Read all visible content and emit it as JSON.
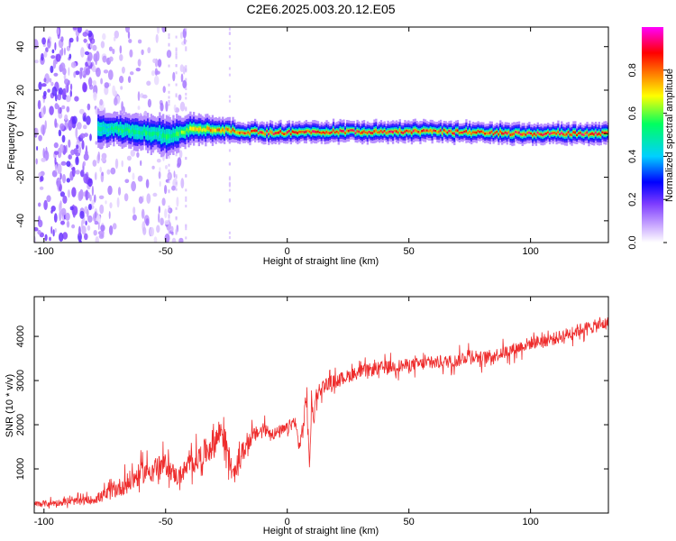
{
  "title": "C2E6.2025.003.20.12.E05",
  "chart_data": [
    {
      "type": "heatmap",
      "xlabel": "Height of straight line (km)",
      "ylabel": "Frequency (Hz)",
      "xlim": [
        -104,
        132
      ],
      "ylim": [
        -50,
        49
      ],
      "xticks": [
        -100,
        -50,
        0,
        50,
        100
      ],
      "yticks": [
        -40,
        -20,
        0,
        20,
        40
      ],
      "colorbar": {
        "label": "Normalized spectral amplitude",
        "range": [
          0,
          1
        ],
        "ticks": [
          0.0,
          0.2,
          0.4,
          0.6,
          0.8
        ],
        "colors": [
          "#ffffff",
          "#c9a7ff",
          "#7d3cff",
          "#0000ff",
          "#00d0ff",
          "#00ff60",
          "#ffff00",
          "#ff8000",
          "#ff0000",
          "#ff00ff"
        ]
      },
      "band": {
        "x": [
          -78,
          -70,
          -60,
          -50,
          -45,
          -40,
          -30,
          -20,
          -10,
          0,
          20,
          40,
          60,
          80,
          100,
          120,
          132
        ],
        "center_hz": [
          2,
          2,
          1,
          -1,
          0,
          2,
          2,
          1,
          0.5,
          0.5,
          1,
          1,
          1,
          0.5,
          0,
          0,
          0
        ],
        "half_width_hz": [
          5,
          4.5,
          5,
          5.5,
          5,
          4.5,
          4,
          3,
          3,
          3,
          3,
          3,
          3,
          3,
          3,
          3,
          3
        ],
        "peak_amplitude": [
          0.5,
          0.55,
          0.55,
          0.55,
          0.6,
          0.7,
          0.8,
          0.85,
          0.9,
          0.9,
          0.9,
          0.9,
          0.88,
          0.9,
          0.92,
          0.92,
          0.9
        ]
      },
      "noise_region_x": [
        -104,
        -72
      ]
    },
    {
      "type": "line",
      "xlabel": "Height of straight line (km)",
      "ylabel": "SNR (10 * v/v)",
      "xlim": [
        -104,
        132
      ],
      "ylim": [
        0,
        4900
      ],
      "xticks": [
        -100,
        -50,
        0,
        50,
        100
      ],
      "yticks": [
        1000,
        2000,
        3000,
        4000
      ],
      "color": "#ee2c2c",
      "x": [
        -104,
        -90,
        -80,
        -75,
        -70,
        -65,
        -60,
        -55,
        -50,
        -45,
        -40,
        -35,
        -30,
        -27,
        -25,
        -22,
        -20,
        -15,
        -10,
        -5,
        0,
        3,
        5,
        7,
        8,
        9,
        10,
        11,
        12,
        15,
        20,
        25,
        30,
        35,
        40,
        50,
        60,
        70,
        75,
        80,
        90,
        100,
        110,
        120,
        132
      ],
      "y": [
        200,
        250,
        300,
        400,
        550,
        700,
        900,
        1000,
        1100,
        800,
        1100,
        1300,
        1600,
        1900,
        1500,
        800,
        1200,
        1700,
        1900,
        1800,
        1900,
        2100,
        1500,
        2100,
        2800,
        1000,
        2400,
        2200,
        2700,
        2900,
        3000,
        3100,
        3200,
        3250,
        3300,
        3350,
        3400,
        3450,
        3600,
        3500,
        3650,
        3850,
        3950,
        4150,
        4300
      ],
      "spread": [
        150,
        150,
        200,
        300,
        400,
        500,
        500,
        500,
        500,
        400,
        500,
        600,
        700,
        700,
        600,
        400,
        500,
        400,
        300,
        300,
        300,
        300,
        400,
        500,
        900,
        600,
        400,
        400,
        400,
        300,
        300,
        300,
        300,
        300,
        300,
        300,
        300,
        300,
        350,
        300,
        300,
        300,
        300,
        300,
        300
      ]
    }
  ]
}
